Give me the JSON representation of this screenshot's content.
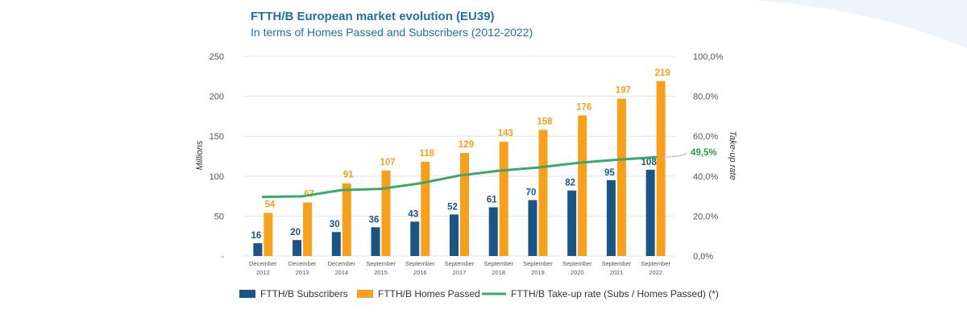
{
  "colors": {
    "title": "#1f6fa8",
    "subscribers": "#1b5583",
    "homes_passed": "#f6a01d",
    "takeup": "#3aa86b",
    "takeup_label": "#2e9a4e"
  },
  "chart_data": {
    "type": "bar",
    "title": "FTTH/B European market evolution (EU39)",
    "subtitle": "In terms of Homes Passed and Subscribers (2012-2022)",
    "ylabel": "Millions",
    "y2label": "Take-up rate",
    "ylim": [
      0,
      250
    ],
    "y2lim": [
      0,
      100
    ],
    "yticks": [
      "-",
      "50",
      "100",
      "150",
      "200",
      "250"
    ],
    "y2ticks": [
      "0,0%",
      "20,0%",
      "40,0%",
      "60,0%",
      "80,0%",
      "100,0%"
    ],
    "categories": [
      [
        "December",
        "2012"
      ],
      [
        "December",
        "2013"
      ],
      [
        "December",
        "2014"
      ],
      [
        "September",
        "2015"
      ],
      [
        "September",
        "2016"
      ],
      [
        "September",
        "2017"
      ],
      [
        "September",
        "2018"
      ],
      [
        "September",
        "2019"
      ],
      [
        "September",
        "2020"
      ],
      [
        "September",
        "2021"
      ],
      [
        "September",
        "2022"
      ]
    ],
    "series": [
      {
        "name": "FTTH/B Subscribers",
        "kind": "bar",
        "values": [
          16,
          20,
          30,
          36,
          43,
          52,
          61,
          70,
          82,
          95,
          108
        ]
      },
      {
        "name": "FTTH/B Homes Passed",
        "kind": "bar",
        "values": [
          54,
          67,
          91,
          107,
          118,
          129,
          143,
          158,
          176,
          197,
          219
        ]
      },
      {
        "name": "FTTH/B Take-up rate (Subs / Homes Passed) (*)",
        "kind": "line",
        "axis": "right",
        "values": [
          29.6,
          29.9,
          33.0,
          33.6,
          36.4,
          40.3,
          42.7,
          44.3,
          46.6,
          48.2,
          49.5
        ]
      }
    ],
    "annotation": "49,5%",
    "legend_position": "bottom",
    "grid": true
  }
}
